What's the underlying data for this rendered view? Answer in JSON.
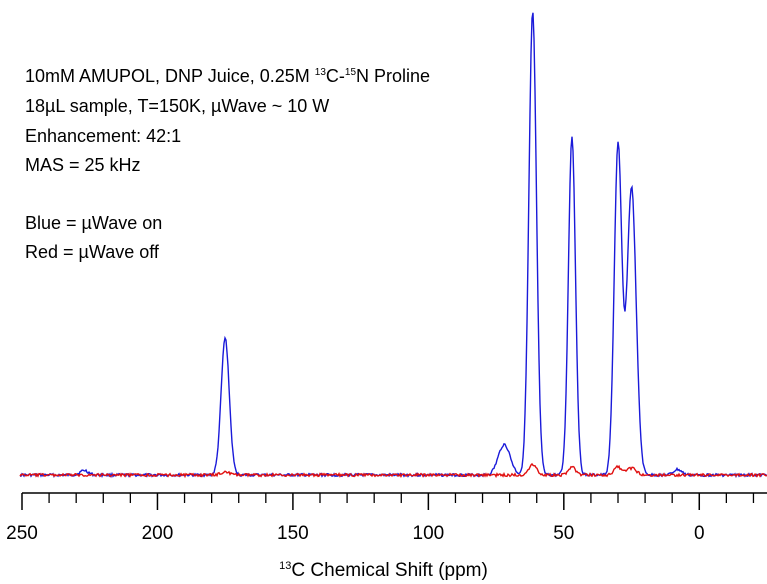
{
  "annotation": {
    "line1_prefix": "10mM AMUPOL, DNP Juice, 0.25M ",
    "line1_sup1": "13",
    "line1_mid": "C-",
    "line1_sup2": "15",
    "line1_suffix": "N Proline",
    "line2": "18µL sample, T=150K, µWave ~ 10 W",
    "line3": "Enhancement: 42:1",
    "line4": "MAS = 25 kHz",
    "line5": "Blue = µWave on",
    "line6": "Red = µWave off"
  },
  "chart_data": {
    "type": "line",
    "title": "",
    "xlabel_sup": "13",
    "xlabel": "C Chemical Shift (ppm)",
    "ylabel": "",
    "xlim": [
      250,
      -25
    ],
    "ylim": [
      0,
      1
    ],
    "x_reversed": true,
    "grid": false,
    "x_ticks": [
      250,
      200,
      150,
      100,
      50,
      0
    ],
    "x_tick_labels": [
      "250",
      "200",
      "150",
      "100",
      "50",
      "0"
    ],
    "x_minor_tick_step": 10,
    "series": [
      {
        "name": "Blue = µWave on",
        "color": "#1a1ad9",
        "peaks": [
          {
            "center": 175,
            "height": 0.296,
            "width": 1.5
          },
          {
            "center": 72,
            "height": 0.066,
            "width": 2.2
          },
          {
            "center": 61.5,
            "height": 1.0,
            "width": 1.4
          },
          {
            "center": 47,
            "height": 0.733,
            "width": 1.3
          },
          {
            "center": 30,
            "height": 0.71,
            "width": 1.4
          },
          {
            "center": 25,
            "height": 0.622,
            "width": 1.7
          },
          {
            "center": 8,
            "height": 0.012,
            "width": 1.5
          },
          {
            "center": 227,
            "height": 0.01,
            "width": 1.5
          }
        ]
      },
      {
        "name": "Red = µWave off",
        "color": "#e01010",
        "peaks": [
          {
            "center": 175,
            "height": 0.007,
            "width": 1.5
          },
          {
            "center": 61.5,
            "height": 0.024,
            "width": 1.4
          },
          {
            "center": 47,
            "height": 0.018,
            "width": 1.3
          },
          {
            "center": 30,
            "height": 0.017,
            "width": 1.4
          },
          {
            "center": 25,
            "height": 0.015,
            "width": 1.7
          }
        ]
      }
    ]
  }
}
